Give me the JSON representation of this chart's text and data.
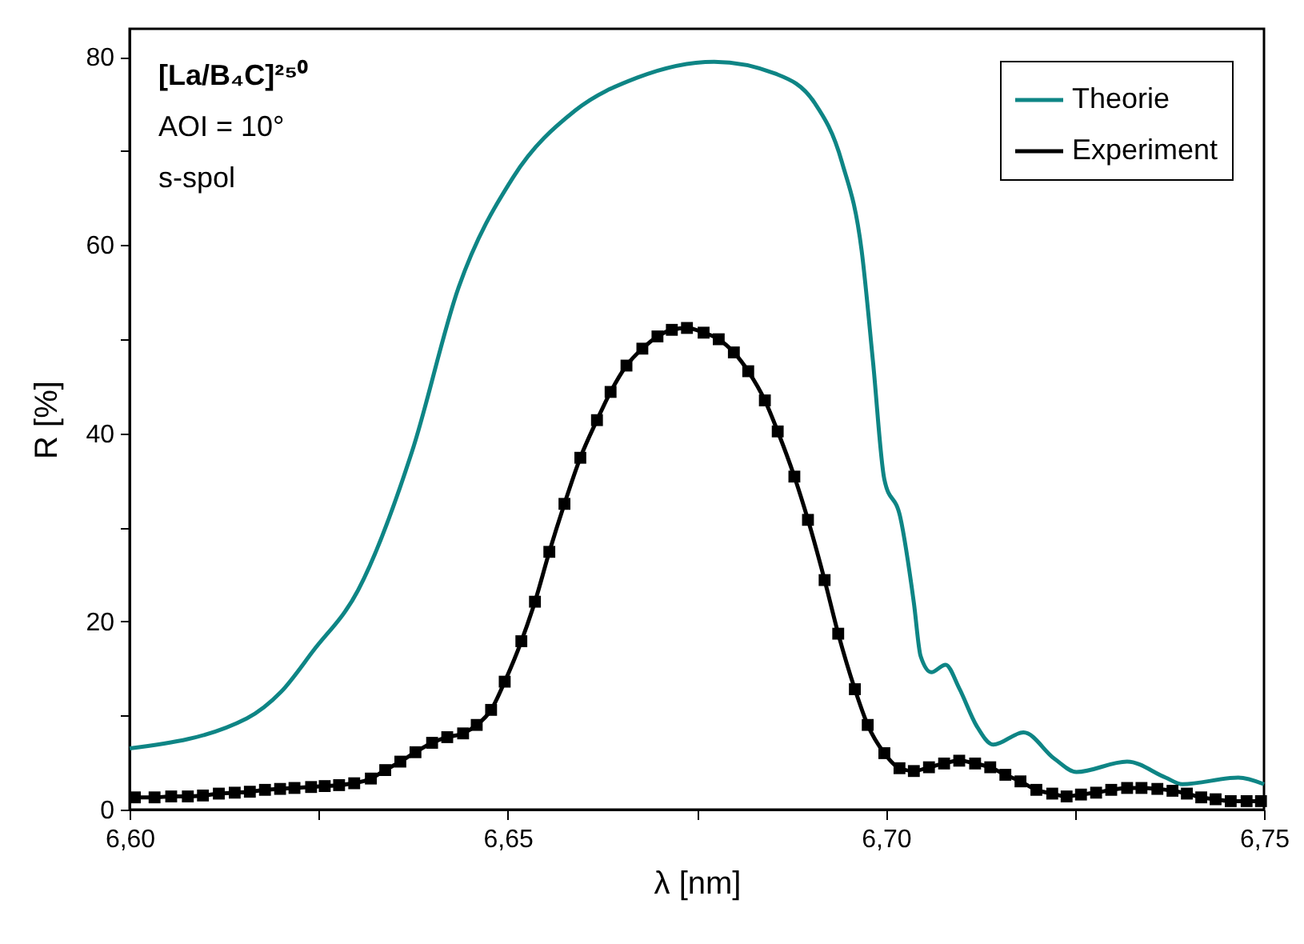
{
  "chart_data": {
    "type": "line",
    "xlabel": "λ [nm]",
    "ylabel": "R [%]",
    "xlim": [
      6.6,
      6.75
    ],
    "ylim": [
      0,
      83
    ],
    "xticks": [
      {
        "value": 6.6,
        "label": "6,60"
      },
      {
        "value": 6.625,
        "label": null
      },
      {
        "value": 6.65,
        "label": "6,65"
      },
      {
        "value": 6.675,
        "label": null
      },
      {
        "value": 6.7,
        "label": "6,70"
      },
      {
        "value": 6.725,
        "label": null
      },
      {
        "value": 6.75,
        "label": "6,75"
      }
    ],
    "yticks": [
      0,
      {
        "value": 10,
        "label": null
      },
      20,
      {
        "value": 30,
        "label": null
      },
      40,
      {
        "value": 50,
        "label": null
      },
      60,
      {
        "value": 70,
        "label": null
      },
      80
    ],
    "grid": false,
    "legend": "top right",
    "line_style": "solid",
    "annotations": [
      "[La/B₄C]²⁵⁰",
      "AOI = 10°",
      "s-spol"
    ],
    "series": [
      {
        "name": "Theorie",
        "color": "#0e8585",
        "marker": "none",
        "x": [
          6.6,
          6.6155,
          6.62,
          6.6243,
          6.6302,
          6.6374,
          6.6435,
          6.6507,
          6.6589,
          6.6671,
          6.6773,
          6.6855,
          6.6906,
          6.6942,
          6.6968,
          6.6983,
          6.6998,
          6.7019,
          6.7037,
          6.7046,
          6.706,
          6.7079,
          6.7097,
          6.712,
          6.7142,
          6.7182,
          6.7223,
          6.7252,
          6.7319,
          6.737,
          6.7392,
          6.7466,
          6.75
        ],
        "values": [
          6.5,
          9.7,
          12.5,
          16.9,
          23.3,
          38.2,
          55.5,
          67.2,
          74.3,
          77.8,
          79.5,
          78.2,
          75.1,
          68.8,
          59.4,
          47.6,
          35.1,
          31.1,
          22.0,
          16.3,
          14.6,
          15.4,
          12.9,
          8.9,
          6.9,
          8.2,
          5.4,
          4.0,
          5.1,
          3.4,
          2.7,
          3.4,
          2.7
        ]
      },
      {
        "name": "Experiment",
        "color": "#000000",
        "marker": "square",
        "x": [
          6.6007,
          6.6033,
          6.6055,
          6.6077,
          6.6097,
          6.6118,
          6.6139,
          6.6159,
          6.6179,
          6.6199,
          6.6218,
          6.624,
          6.6258,
          6.6277,
          6.6297,
          6.6319,
          6.6338,
          6.6358,
          6.6378,
          6.64,
          6.642,
          6.6441,
          6.6459,
          6.6478,
          6.6496,
          6.6518,
          6.6536,
          6.6555,
          6.6575,
          6.6596,
          6.6618,
          6.6636,
          6.6657,
          6.6678,
          6.6698,
          6.6717,
          6.6737,
          6.6759,
          6.6779,
          6.6799,
          6.6818,
          6.684,
          6.6857,
          6.6879,
          6.6897,
          6.6919,
          6.6937,
          6.6959,
          6.6976,
          6.6998,
          6.7018,
          6.7037,
          6.7057,
          6.7077,
          6.7097,
          6.7118,
          6.7138,
          6.7158,
          6.7178,
          6.7199,
          6.722,
          6.7239,
          6.7258,
          6.7278,
          6.7298,
          6.7319,
          6.7338,
          6.7359,
          6.7379,
          6.7398,
          6.7417,
          6.7436,
          6.7456,
          6.7477,
          6.7496
        ],
        "values": [
          1.3,
          1.3,
          1.4,
          1.4,
          1.5,
          1.7,
          1.8,
          1.9,
          2.1,
          2.2,
          2.3,
          2.4,
          2.5,
          2.6,
          2.8,
          3.3,
          4.2,
          5.1,
          6.1,
          7.1,
          7.7,
          8.1,
          9.0,
          10.6,
          13.6,
          17.9,
          22.1,
          27.4,
          32.5,
          37.4,
          41.4,
          44.4,
          47.2,
          49.0,
          50.3,
          51.0,
          51.2,
          50.7,
          50.0,
          48.6,
          46.6,
          43.5,
          40.2,
          35.4,
          30.8,
          24.4,
          18.7,
          12.8,
          9.0,
          6.0,
          4.4,
          4.1,
          4.5,
          4.9,
          5.2,
          4.9,
          4.5,
          3.7,
          3.0,
          2.1,
          1.7,
          1.4,
          1.6,
          1.8,
          2.1,
          2.3,
          2.3,
          2.2,
          2.0,
          1.7,
          1.3,
          1.1,
          0.9,
          0.9,
          0.9
        ]
      }
    ]
  }
}
